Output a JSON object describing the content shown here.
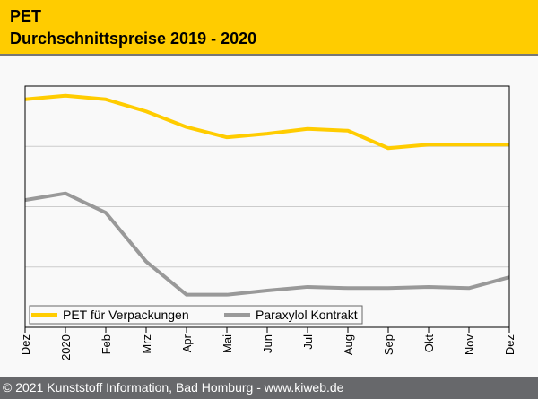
{
  "header": {
    "title": "PET",
    "subtitle": "Durchschnittspreise 2019 - 2020"
  },
  "footer": {
    "text": "© 2021 Kunststoff Information, Bad Homburg - www.kiweb.de"
  },
  "chart_data": {
    "type": "line",
    "title": "PET Durchschnittspreise 2019 - 2020",
    "xlabel": "",
    "ylabel": "",
    "categories": [
      "Dez",
      "2020",
      "Feb",
      "Mrz",
      "Apr",
      "Mai",
      "Jun",
      "Jul",
      "Aug",
      "Sep",
      "Okt",
      "Nov",
      "Dez"
    ],
    "ylim": [
      0,
      4
    ],
    "grid": true,
    "legend": "bottom-left",
    "series": [
      {
        "name": "PET für Verpackungen",
        "color": "#ffcc00",
        "values": [
          3.78,
          3.84,
          3.78,
          3.58,
          3.32,
          3.15,
          3.21,
          3.29,
          3.26,
          2.97,
          3.03,
          3.03,
          3.03
        ]
      },
      {
        "name": "Paraxylol Kontrakt",
        "color": "#999999",
        "values": [
          2.11,
          2.22,
          1.9,
          1.09,
          0.54,
          0.54,
          0.61,
          0.67,
          0.65,
          0.65,
          0.67,
          0.65,
          0.83
        ]
      }
    ]
  }
}
